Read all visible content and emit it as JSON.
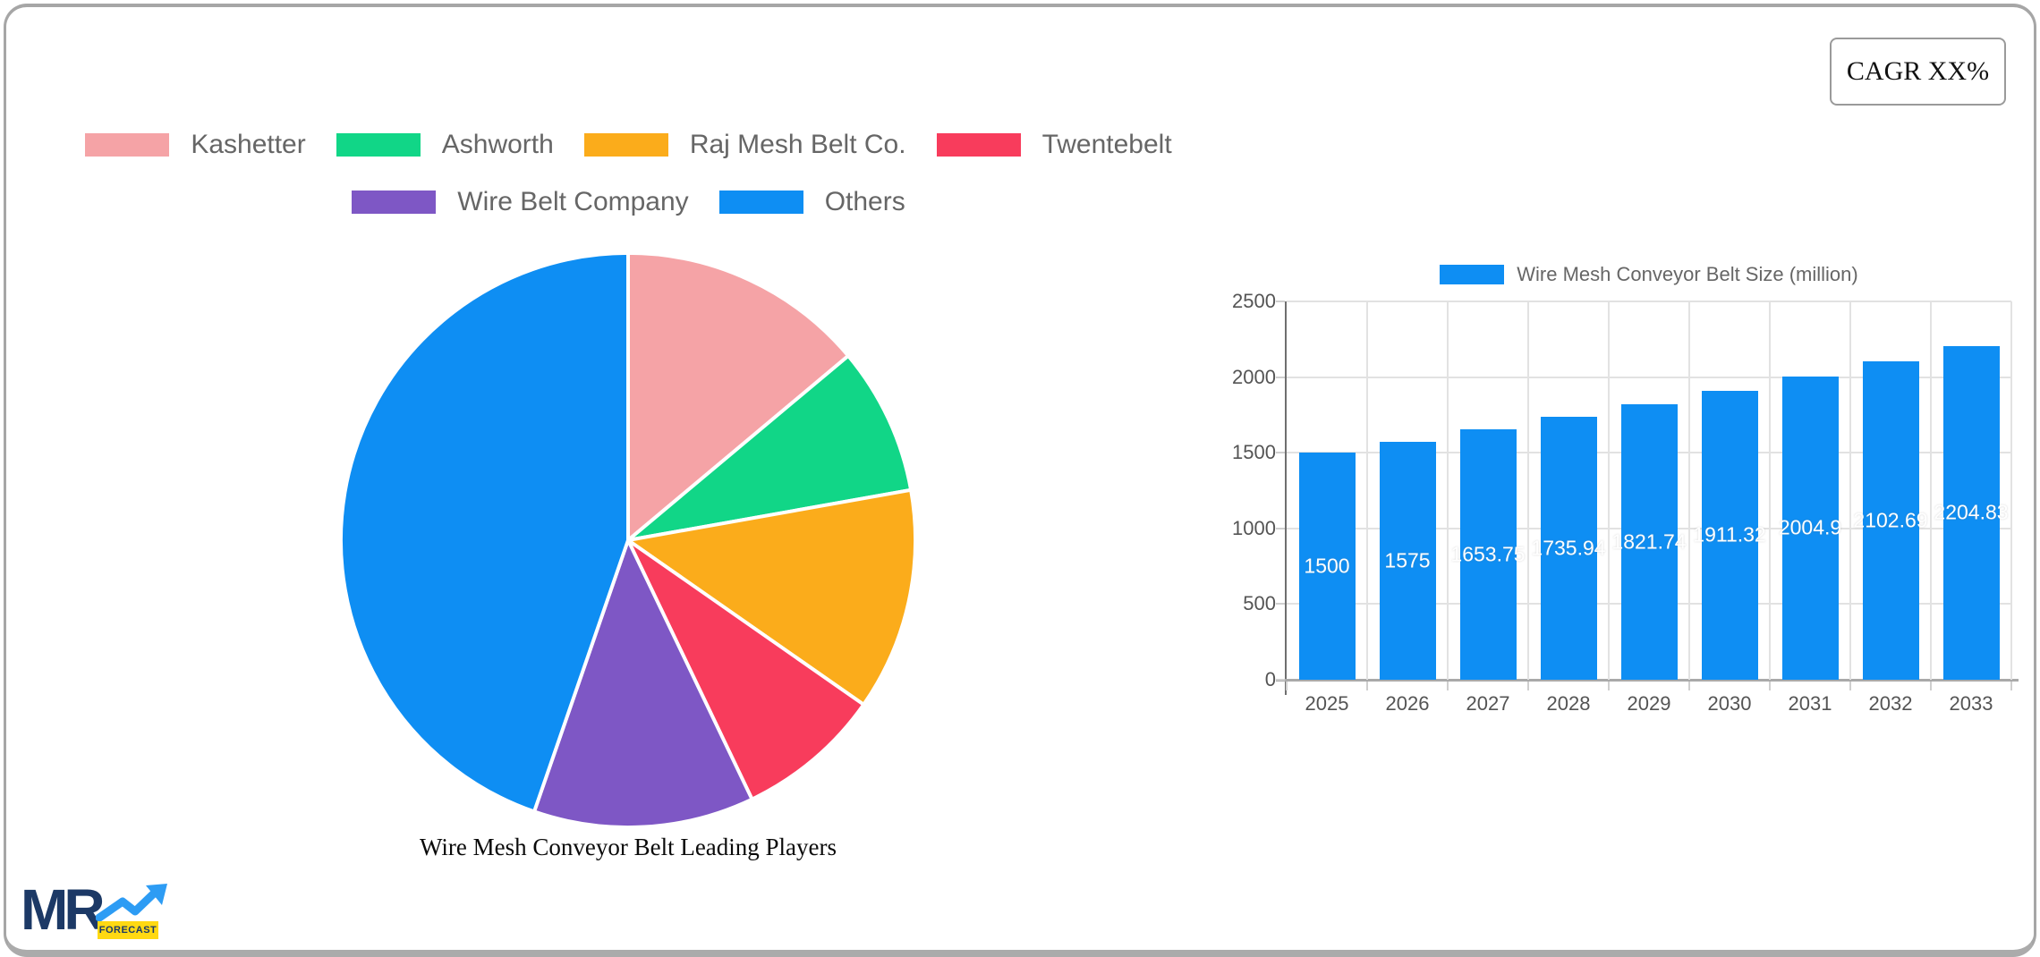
{
  "cagr_box": {
    "label": "CAGR XX%"
  },
  "logo": {
    "mr": "MR",
    "forecast": "FORECAST"
  },
  "chart_data": [
    {
      "type": "pie",
      "title": "Wire Mesh Conveyor Belt Leading Players",
      "labels": [
        "Kashetter",
        "Ashworth",
        "Raj Mesh Belt Co.",
        "Twentebelt",
        "Wire Belt Company",
        "Others"
      ],
      "values_percent": [
        13.9,
        8.3,
        12.5,
        8.2,
        12.4,
        44.7
      ],
      "colors": [
        "#F5A3A6",
        "#11D687",
        "#FBAC1B",
        "#F83C5C",
        "#7E57C5",
        "#0E8EF3"
      ],
      "start_angle": "top",
      "direction": "clockwise",
      "slice_border_color": "#ffffff",
      "legend_position": "top",
      "legend_rows": [
        [
          0,
          1,
          2,
          3
        ],
        [
          4,
          5
        ]
      ]
    },
    {
      "type": "bar",
      "legend_label": "Wire Mesh Conveyor Belt Size (million)",
      "categories": [
        "2025",
        "2026",
        "2027",
        "2028",
        "2029",
        "2030",
        "2031",
        "2032",
        "2033"
      ],
      "values": [
        1500,
        1575,
        1653.75,
        1735.94,
        1821.74,
        1911.32,
        2004.9,
        2102.69,
        2204.83
      ],
      "bar_color": "#0E8EF3",
      "value_label_color": "#ffffff",
      "ylim": [
        0,
        2500
      ],
      "ytick_step": 500,
      "yticks": [
        0,
        500,
        1000,
        1500,
        2000,
        2500
      ],
      "grid": true,
      "legend_position": "top"
    }
  ]
}
